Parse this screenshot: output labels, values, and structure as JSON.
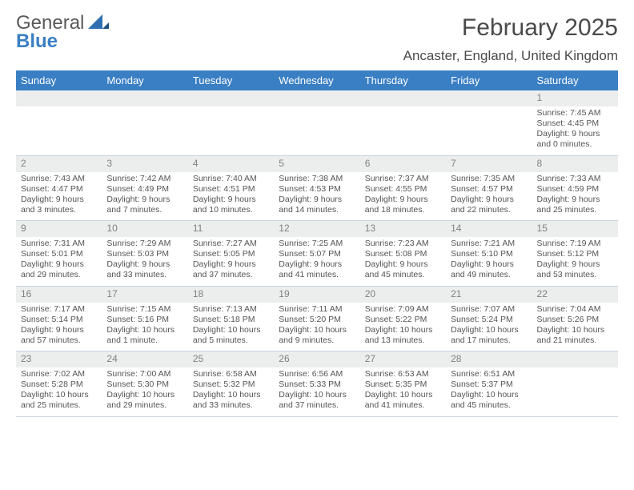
{
  "logo": {
    "line1": "General",
    "line2": "Blue",
    "mark_color": "#2f6fb1"
  },
  "title": "February 2025",
  "location": "Ancaster, England, United Kingdom",
  "colors": {
    "header_bar": "#3a7fc4",
    "header_text": "#ffffff",
    "daynum_band": "#eceeee",
    "daynum_text": "#808080",
    "body_text": "#555555",
    "divider": "#c9d2db"
  },
  "weekdays": [
    "Sunday",
    "Monday",
    "Tuesday",
    "Wednesday",
    "Thursday",
    "Friday",
    "Saturday"
  ],
  "weeks": [
    [
      {
        "blank": true
      },
      {
        "blank": true
      },
      {
        "blank": true
      },
      {
        "blank": true
      },
      {
        "blank": true
      },
      {
        "blank": true
      },
      {
        "n": "1",
        "sunrise": "7:45 AM",
        "sunset": "4:45 PM",
        "daylight": "9 hours and 0 minutes."
      }
    ],
    [
      {
        "n": "2",
        "sunrise": "7:43 AM",
        "sunset": "4:47 PM",
        "daylight": "9 hours and 3 minutes."
      },
      {
        "n": "3",
        "sunrise": "7:42 AM",
        "sunset": "4:49 PM",
        "daylight": "9 hours and 7 minutes."
      },
      {
        "n": "4",
        "sunrise": "7:40 AM",
        "sunset": "4:51 PM",
        "daylight": "9 hours and 10 minutes."
      },
      {
        "n": "5",
        "sunrise": "7:38 AM",
        "sunset": "4:53 PM",
        "daylight": "9 hours and 14 minutes."
      },
      {
        "n": "6",
        "sunrise": "7:37 AM",
        "sunset": "4:55 PM",
        "daylight": "9 hours and 18 minutes."
      },
      {
        "n": "7",
        "sunrise": "7:35 AM",
        "sunset": "4:57 PM",
        "daylight": "9 hours and 22 minutes."
      },
      {
        "n": "8",
        "sunrise": "7:33 AM",
        "sunset": "4:59 PM",
        "daylight": "9 hours and 25 minutes."
      }
    ],
    [
      {
        "n": "9",
        "sunrise": "7:31 AM",
        "sunset": "5:01 PM",
        "daylight": "9 hours and 29 minutes."
      },
      {
        "n": "10",
        "sunrise": "7:29 AM",
        "sunset": "5:03 PM",
        "daylight": "9 hours and 33 minutes."
      },
      {
        "n": "11",
        "sunrise": "7:27 AM",
        "sunset": "5:05 PM",
        "daylight": "9 hours and 37 minutes."
      },
      {
        "n": "12",
        "sunrise": "7:25 AM",
        "sunset": "5:07 PM",
        "daylight": "9 hours and 41 minutes."
      },
      {
        "n": "13",
        "sunrise": "7:23 AM",
        "sunset": "5:08 PM",
        "daylight": "9 hours and 45 minutes."
      },
      {
        "n": "14",
        "sunrise": "7:21 AM",
        "sunset": "5:10 PM",
        "daylight": "9 hours and 49 minutes."
      },
      {
        "n": "15",
        "sunrise": "7:19 AM",
        "sunset": "5:12 PM",
        "daylight": "9 hours and 53 minutes."
      }
    ],
    [
      {
        "n": "16",
        "sunrise": "7:17 AM",
        "sunset": "5:14 PM",
        "daylight": "9 hours and 57 minutes."
      },
      {
        "n": "17",
        "sunrise": "7:15 AM",
        "sunset": "5:16 PM",
        "daylight": "10 hours and 1 minute."
      },
      {
        "n": "18",
        "sunrise": "7:13 AM",
        "sunset": "5:18 PM",
        "daylight": "10 hours and 5 minutes."
      },
      {
        "n": "19",
        "sunrise": "7:11 AM",
        "sunset": "5:20 PM",
        "daylight": "10 hours and 9 minutes."
      },
      {
        "n": "20",
        "sunrise": "7:09 AM",
        "sunset": "5:22 PM",
        "daylight": "10 hours and 13 minutes."
      },
      {
        "n": "21",
        "sunrise": "7:07 AM",
        "sunset": "5:24 PM",
        "daylight": "10 hours and 17 minutes."
      },
      {
        "n": "22",
        "sunrise": "7:04 AM",
        "sunset": "5:26 PM",
        "daylight": "10 hours and 21 minutes."
      }
    ],
    [
      {
        "n": "23",
        "sunrise": "7:02 AM",
        "sunset": "5:28 PM",
        "daylight": "10 hours and 25 minutes."
      },
      {
        "n": "24",
        "sunrise": "7:00 AM",
        "sunset": "5:30 PM",
        "daylight": "10 hours and 29 minutes."
      },
      {
        "n": "25",
        "sunrise": "6:58 AM",
        "sunset": "5:32 PM",
        "daylight": "10 hours and 33 minutes."
      },
      {
        "n": "26",
        "sunrise": "6:56 AM",
        "sunset": "5:33 PM",
        "daylight": "10 hours and 37 minutes."
      },
      {
        "n": "27",
        "sunrise": "6:53 AM",
        "sunset": "5:35 PM",
        "daylight": "10 hours and 41 minutes."
      },
      {
        "n": "28",
        "sunrise": "6:51 AM",
        "sunset": "5:37 PM",
        "daylight": "10 hours and 45 minutes."
      },
      {
        "blank": true
      }
    ]
  ],
  "labels": {
    "sunrise": "Sunrise:",
    "sunset": "Sunset:",
    "daylight": "Daylight:"
  }
}
